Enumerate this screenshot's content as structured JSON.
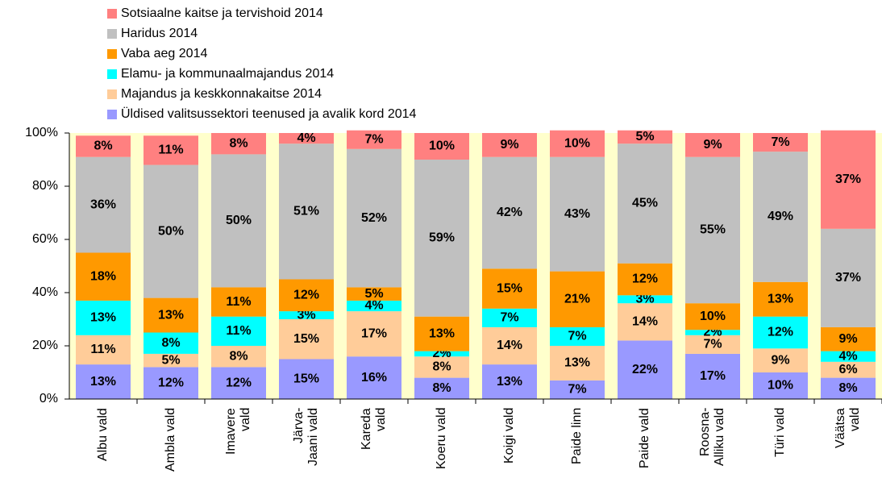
{
  "chart_data": {
    "type": "stacked_bar_100",
    "categories": [
      "Albu vald",
      "Ambla vald",
      "Imavere\nvald",
      "Järva-\nJaani vald",
      "Kareda\nvald",
      "Koeru vald",
      "Koigi vald",
      "Paide linn",
      "Paide vald",
      "Roosna-\nAlliku vald",
      "Türi vald",
      "Väätsa\nvald"
    ],
    "series": [
      {
        "name": "Sotsiaalne kaitse ja tervishoid 2014",
        "color": "#ff8080",
        "values": [
          8,
          11,
          8,
          4,
          7,
          10,
          9,
          10,
          5,
          9,
          7,
          37
        ],
        "value_labels": [
          "8%",
          "11%",
          "8%",
          "4%",
          "7%",
          "10%",
          "9%",
          "10%",
          "5%",
          "9%",
          "7%",
          "37%"
        ]
      },
      {
        "name": "Haridus 2014",
        "color": "#c0c0c0",
        "values": [
          36,
          50,
          50,
          51,
          52,
          59,
          42,
          43,
          45,
          55,
          49,
          37
        ],
        "value_labels": [
          "36%",
          "50%",
          "50%",
          "51%",
          "52%",
          "59%",
          "42%",
          "43%",
          "45%",
          "55%",
          "49%",
          "37%"
        ]
      },
      {
        "name": "Vaba aeg 2014",
        "color": "#ff9900",
        "values": [
          18,
          13,
          11,
          12,
          5,
          13,
          15,
          21,
          12,
          10,
          13,
          9
        ],
        "value_labels": [
          "18%",
          "13%",
          "11%",
          "12%",
          "5%",
          "13%",
          "15%",
          "21%",
          "12%",
          "10%",
          "13%",
          "9%"
        ]
      },
      {
        "name": "Elamu- ja kommunaalmajandus 2014",
        "color": "#00ffff",
        "values": [
          13,
          8,
          11,
          3,
          4,
          2,
          7,
          7,
          3,
          2,
          12,
          4
        ],
        "value_labels": [
          "13%",
          "8%",
          "11%",
          "3%",
          "4%",
          "2%",
          "7%",
          "7%",
          "3%",
          "2%",
          "12%",
          "4%"
        ]
      },
      {
        "name": "Majandus ja keskkonnakaitse 2014",
        "color": "#ffcc99",
        "values": [
          11,
          5,
          8,
          15,
          17,
          8,
          14,
          13,
          14,
          7,
          9,
          6
        ],
        "value_labels": [
          "11%",
          "5%",
          "8%",
          "15%",
          "17%",
          "8%",
          "14%",
          "13%",
          "14%",
          "7%",
          "9%",
          "6%"
        ]
      },
      {
        "name": "Üldised valitsussektori teenused ja avalik kord 2014",
        "color": "#9999ff",
        "values": [
          13,
          12,
          12,
          15,
          16,
          8,
          13,
          7,
          22,
          17,
          10,
          8
        ],
        "value_labels": [
          "13%",
          "12%",
          "12%",
          "15%",
          "16%",
          "8%",
          "13%",
          "7%",
          "22%",
          "17%",
          "10%",
          "8%"
        ]
      }
    ],
    "ylim": [
      0,
      100
    ],
    "yticks": [
      {
        "value": 0,
        "label": "0%"
      },
      {
        "value": 20,
        "label": "20%"
      },
      {
        "value": 40,
        "label": "40%"
      },
      {
        "value": 60,
        "label": "60%"
      },
      {
        "value": 80,
        "label": "80%"
      },
      {
        "value": 100,
        "label": "100%"
      }
    ],
    "plot_background": "#ffffcc",
    "legend": "top"
  }
}
